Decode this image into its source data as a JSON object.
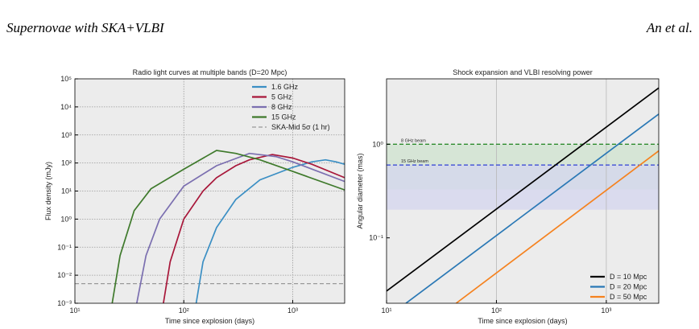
{
  "header": {
    "title": "Supernovae with SKA+VLBI",
    "authors": "An et al."
  },
  "chart_data": [
    {
      "type": "line",
      "title": "Radio light curves at multiple bands (D=20 Mpc)",
      "xlabel": "Time since explosion (days)",
      "ylabel": "Flux density (mJy)",
      "xscale": "log",
      "yscale": "log",
      "xlim": [
        10,
        3000
      ],
      "ylim": [
        0.001,
        100000
      ],
      "xticks": [
        {
          "value": 10,
          "label": "10¹"
        },
        {
          "value": 100,
          "label": "10²"
        },
        {
          "value": 1000,
          "label": "10³"
        }
      ],
      "yticks": [
        {
          "value": 0.001,
          "label": "10⁻³"
        },
        {
          "value": 0.01,
          "label": "10⁻²"
        },
        {
          "value": 0.1,
          "label": "10⁻¹"
        },
        {
          "value": 1,
          "label": "10⁰"
        },
        {
          "value": 10,
          "label": "10¹"
        },
        {
          "value": 100,
          "label": "10²"
        },
        {
          "value": 1000,
          "label": "10³"
        },
        {
          "value": 10000,
          "label": "10⁴"
        },
        {
          "value": 100000,
          "label": "10⁵"
        }
      ],
      "grid": "both",
      "legend": "upper right",
      "series": [
        {
          "name": "1.6 GHz",
          "color": "#3b8fc4",
          "x": [
            130,
            150,
            200,
            300,
            500,
            1000,
            1500,
            2000,
            2500,
            3000
          ],
          "values": [
            0.001,
            0.03,
            0.5,
            5,
            25,
            70,
            110,
            130,
            110,
            90
          ]
        },
        {
          "name": "5 GHz",
          "color": "#a8173a",
          "x": [
            65,
            75,
            100,
            150,
            200,
            300,
            400,
            650,
            1000,
            1500,
            3000
          ],
          "values": [
            0.001,
            0.03,
            1,
            10,
            30,
            80,
            130,
            200,
            150,
            90,
            30
          ]
        },
        {
          "name": "8 GHz",
          "color": "#7b6fb0",
          "x": [
            37,
            45,
            60,
            100,
            200,
            400,
            700,
            1000,
            3000
          ],
          "values": [
            0.001,
            0.05,
            1,
            15,
            80,
            220,
            170,
            110,
            22
          ]
        },
        {
          "name": "15 GHz",
          "color": "#3f7a2c",
          "x": [
            22,
            26,
            35,
            50,
            100,
            200,
            300,
            500,
            1000,
            3000
          ],
          "values": [
            0.001,
            0.05,
            2,
            12,
            60,
            280,
            220,
            130,
            50,
            11
          ]
        }
      ],
      "hlines": [
        {
          "name": "SKA-Mid 5σ (1 hr)",
          "value": 0.005,
          "color": "#999999"
        }
      ]
    },
    {
      "type": "line",
      "title": "Shock expansion and VLBI resolving power",
      "xlabel": "Time since explosion (days)",
      "ylabel": "Angular diameter (mas)",
      "xscale": "log",
      "yscale": "log",
      "xlim": [
        10,
        3000
      ],
      "ylim": [
        0.02,
        5
      ],
      "xticks": [
        {
          "value": 10,
          "label": "10¹"
        },
        {
          "value": 100,
          "label": "10²"
        },
        {
          "value": 1000,
          "label": "10³"
        }
      ],
      "yticks": [
        {
          "value": 0.1,
          "label": "10⁻¹"
        },
        {
          "value": 1,
          "label": "10⁰"
        }
      ],
      "grid": "x",
      "legend": "lower right",
      "series": [
        {
          "name": "D = 10 Mpc",
          "color": "#000000",
          "x": [
            10,
            3000
          ],
          "values": [
            0.027,
            4
          ]
        },
        {
          "name": "D = 20 Mpc",
          "color": "#2a78b5",
          "x": [
            15,
            3000
          ],
          "values": [
            0.02,
            2.1
          ]
        },
        {
          "name": "D = 50 Mpc",
          "color": "#f5821f",
          "x": [
            43,
            3000
          ],
          "values": [
            0.02,
            0.85
          ]
        }
      ],
      "hlines": [
        {
          "label": "8 GHz beam",
          "value": 1,
          "color": "#2e8b2e",
          "band": [
            0.33,
            1
          ],
          "band_color": "#cfe3cf"
        },
        {
          "label": "15 GHz beam",
          "value": 0.6,
          "color": "#2f3fd6",
          "band": [
            0.2,
            0.6
          ],
          "band_color": "#d4d6ef"
        }
      ]
    }
  ]
}
